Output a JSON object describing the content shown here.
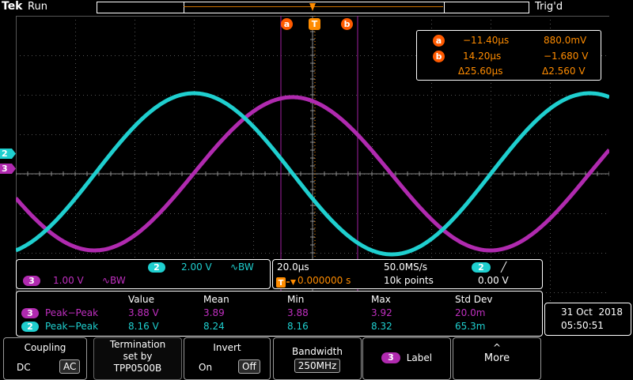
{
  "header": {
    "brand": "Tek",
    "run_state": "Run",
    "trigger_state": "Trig'd"
  },
  "colors": {
    "ch2": "#1fcfcf",
    "ch3": "#b02aaf",
    "cursor": "#ff5a00",
    "readout": "#ff8c00"
  },
  "cursors": {
    "a_label": "a",
    "b_label": "b",
    "trigger_label": "T",
    "a_time": "−11.40μs",
    "a_value": "880.0mV",
    "b_time": "14.20μs",
    "b_value": "−1.680 V",
    "delta_time": "Δ25.60μs",
    "delta_value": "Δ2.560 V"
  },
  "channel_markers": {
    "ch2": "2",
    "ch3": "3"
  },
  "vertical": {
    "ch2_num": "2",
    "ch2_scale": "2.00 V",
    "ch2_bw": "∿BW",
    "ch3_num": "3",
    "ch3_scale": "1.00 V",
    "ch3_bw": "∿BW"
  },
  "horizontal": {
    "timebase": "20.0μs",
    "sample_rate": "50.0MS/s",
    "trig_delay": "0.000000 s",
    "record_length": "10k points",
    "trig_source": "2",
    "trig_slope": "╱",
    "trig_level": "0.00 V"
  },
  "measurements": {
    "headers": [
      "Value",
      "Mean",
      "Min",
      "Max",
      "Std Dev"
    ],
    "rows": [
      {
        "ch": "3",
        "name": "Peak−Peak",
        "value": "3.88 V",
        "mean": "3.89",
        "min": "3.88",
        "max": "3.92",
        "std": "20.0m"
      },
      {
        "ch": "2",
        "name": "Peak−Peak",
        "value": "8.16 V",
        "mean": "8.24",
        "min": "8.16",
        "max": "8.32",
        "std": "65.3m"
      }
    ]
  },
  "datetime": {
    "date": "31 Oct  2018",
    "time": "05:50:51"
  },
  "softkeys": {
    "coupling_label": "Coupling",
    "coupling_dc": "DC",
    "coupling_ac": "AC",
    "termination_line1": "Termination",
    "termination_line2": "set by",
    "termination_line3": "TPP0500B",
    "invert_label": "Invert",
    "invert_on": "On",
    "invert_off": "Off",
    "bandwidth_label": "Bandwidth",
    "bandwidth_value": "250MHz",
    "label_ch": "3",
    "label_text": "Label",
    "more_arrow": "^",
    "more_label": "More"
  },
  "waveforms": {
    "ch2_amplitude_divs": 2.04,
    "ch3_amplitude_divs": 1.94,
    "period_divs": 6.67,
    "ch2_phase_divs": -0.33,
    "ch3_phase_divs": 1.33
  }
}
